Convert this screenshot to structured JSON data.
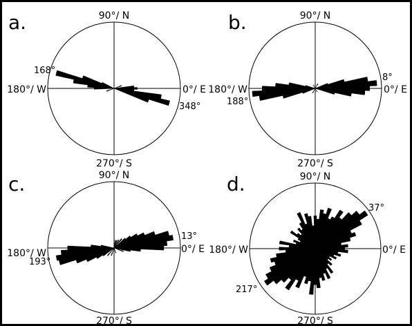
{
  "figure": {
    "frame_color": "#000000",
    "bar_color": "#000000"
  },
  "chart_data": [
    {
      "type": "rose",
      "panel_label": "a.",
      "direction_labels": {
        "north": "90°/ N",
        "west": "180°/ W",
        "east": "0°/ E",
        "south": "270°/ S"
      },
      "peak_labels": [
        "168°",
        "348°"
      ],
      "bin_width_deg": 5,
      "radius_max": 1.0,
      "sectors": [
        {
          "angle": 0,
          "r": 0.35
        },
        {
          "angle": 5,
          "r": 0.3
        },
        {
          "angle": 340,
          "r": 0.55
        },
        {
          "angle": 345,
          "r": 0.86
        },
        {
          "angle": 350,
          "r": 0.72
        },
        {
          "angle": 355,
          "r": 0.3
        },
        {
          "angle": 180,
          "r": 0.3
        },
        {
          "angle": 175,
          "r": 0.4
        },
        {
          "angle": 170,
          "r": 0.62
        },
        {
          "angle": 165,
          "r": 0.9
        },
        {
          "angle": 160,
          "r": 0.5
        },
        {
          "angle": 155,
          "r": 0.2
        },
        {
          "angle": 20,
          "r": 0.12
        },
        {
          "angle": 200,
          "r": 0.12
        }
      ]
    },
    {
      "type": "rose",
      "panel_label": "b.",
      "direction_labels": {
        "north": "90°/ N",
        "west": "180°/ W",
        "east": "0°/ E",
        "south": "270°/ S"
      },
      "peak_labels": [
        "8°",
        "188°"
      ],
      "bin_width_deg": 5,
      "radius_max": 1.0,
      "sectors": [
        {
          "angle": 0,
          "r": 0.82
        },
        {
          "angle": 5,
          "r": 0.93
        },
        {
          "angle": 10,
          "r": 0.8
        },
        {
          "angle": 15,
          "r": 0.45
        },
        {
          "angle": 20,
          "r": 0.2
        },
        {
          "angle": 350,
          "r": 0.55
        },
        {
          "angle": 355,
          "r": 0.75
        },
        {
          "angle": 345,
          "r": 0.3
        },
        {
          "angle": 180,
          "r": 0.8
        },
        {
          "angle": 185,
          "r": 0.95
        },
        {
          "angle": 190,
          "r": 0.85
        },
        {
          "angle": 175,
          "r": 0.6
        },
        {
          "angle": 170,
          "r": 0.4
        },
        {
          "angle": 195,
          "r": 0.5
        },
        {
          "angle": 200,
          "r": 0.2
        },
        {
          "angle": 165,
          "r": 0.15
        },
        {
          "angle": 60,
          "r": 0.08
        },
        {
          "angle": 240,
          "r": 0.08
        },
        {
          "angle": 120,
          "r": 0.06
        },
        {
          "angle": 300,
          "r": 0.06
        }
      ]
    },
    {
      "type": "rose",
      "panel_label": "c.",
      "direction_labels": {
        "north": "90°/ N",
        "west": "180°/ W",
        "east": "0°/ E",
        "south": "270°/ S"
      },
      "peak_labels": [
        "13°",
        "193°"
      ],
      "bin_width_deg": 5,
      "radius_max": 1.0,
      "sectors": [
        {
          "angle": 0,
          "r": 0.75
        },
        {
          "angle": 5,
          "r": 0.8
        },
        {
          "angle": 10,
          "r": 0.9
        },
        {
          "angle": 15,
          "r": 0.85
        },
        {
          "angle": 20,
          "r": 0.65
        },
        {
          "angle": 25,
          "r": 0.5
        },
        {
          "angle": 30,
          "r": 0.4
        },
        {
          "angle": 35,
          "r": 0.3
        },
        {
          "angle": 40,
          "r": 0.22
        },
        {
          "angle": 50,
          "r": 0.18
        },
        {
          "angle": 60,
          "r": 0.14
        },
        {
          "angle": 70,
          "r": 0.12
        },
        {
          "angle": 80,
          "r": 0.12
        },
        {
          "angle": 355,
          "r": 0.4
        },
        {
          "angle": 350,
          "r": 0.25
        },
        {
          "angle": 340,
          "r": 0.15
        },
        {
          "angle": 180,
          "r": 0.7
        },
        {
          "angle": 185,
          "r": 0.8
        },
        {
          "angle": 190,
          "r": 0.88
        },
        {
          "angle": 195,
          "r": 0.85
        },
        {
          "angle": 200,
          "r": 0.6
        },
        {
          "angle": 205,
          "r": 0.45
        },
        {
          "angle": 210,
          "r": 0.3
        },
        {
          "angle": 215,
          "r": 0.2
        },
        {
          "angle": 175,
          "r": 0.35
        },
        {
          "angle": 170,
          "r": 0.2
        },
        {
          "angle": 230,
          "r": 0.15
        },
        {
          "angle": 250,
          "r": 0.12
        },
        {
          "angle": 270,
          "r": 0.08
        },
        {
          "angle": 290,
          "r": 0.08
        }
      ]
    },
    {
      "type": "rose",
      "panel_label": "d.",
      "direction_labels": {
        "north": "90°/ N",
        "west": "180°/ W",
        "east": "0°/ E",
        "south": "270°/ S"
      },
      "peak_labels": [
        "37°",
        "217°"
      ],
      "bin_width_deg": 5,
      "radius_max": 1.0,
      "sectors": [
        {
          "angle": 0,
          "r": 0.45
        },
        {
          "angle": 5,
          "r": 0.5
        },
        {
          "angle": 10,
          "r": 0.4
        },
        {
          "angle": 15,
          "r": 0.55
        },
        {
          "angle": 20,
          "r": 0.65
        },
        {
          "angle": 25,
          "r": 0.6
        },
        {
          "angle": 30,
          "r": 0.8
        },
        {
          "angle": 35,
          "r": 0.95
        },
        {
          "angle": 40,
          "r": 0.85
        },
        {
          "angle": 45,
          "r": 0.75
        },
        {
          "angle": 50,
          "r": 0.6
        },
        {
          "angle": 55,
          "r": 0.7
        },
        {
          "angle": 60,
          "r": 0.55
        },
        {
          "angle": 65,
          "r": 0.5
        },
        {
          "angle": 70,
          "r": 0.65
        },
        {
          "angle": 75,
          "r": 0.55
        },
        {
          "angle": 80,
          "r": 0.6
        },
        {
          "angle": 85,
          "r": 0.45
        },
        {
          "angle": 90,
          "r": 0.5
        },
        {
          "angle": 95,
          "r": 0.35
        },
        {
          "angle": 100,
          "r": 0.5
        },
        {
          "angle": 105,
          "r": 0.55
        },
        {
          "angle": 110,
          "r": 0.4
        },
        {
          "angle": 115,
          "r": 0.6
        },
        {
          "angle": 120,
          "r": 0.45
        },
        {
          "angle": 125,
          "r": 0.35
        },
        {
          "angle": 130,
          "r": 0.4
        },
        {
          "angle": 135,
          "r": 0.3
        },
        {
          "angle": 140,
          "r": 0.35
        },
        {
          "angle": 145,
          "r": 0.45
        },
        {
          "angle": 150,
          "r": 0.3
        },
        {
          "angle": 155,
          "r": 0.25
        },
        {
          "angle": 160,
          "r": 0.35
        },
        {
          "angle": 165,
          "r": 0.3
        },
        {
          "angle": 170,
          "r": 0.55
        },
        {
          "angle": 175,
          "r": 0.4
        },
        {
          "angle": 180,
          "r": 0.55
        },
        {
          "angle": 185,
          "r": 0.45
        },
        {
          "angle": 190,
          "r": 0.6
        },
        {
          "angle": 195,
          "r": 0.7
        },
        {
          "angle": 200,
          "r": 0.65
        },
        {
          "angle": 205,
          "r": 0.75
        },
        {
          "angle": 210,
          "r": 0.85
        },
        {
          "angle": 215,
          "r": 0.92
        },
        {
          "angle": 220,
          "r": 0.8
        },
        {
          "angle": 225,
          "r": 0.7
        },
        {
          "angle": 230,
          "r": 0.6
        },
        {
          "angle": 235,
          "r": 0.75
        },
        {
          "angle": 240,
          "r": 0.55
        },
        {
          "angle": 245,
          "r": 0.65
        },
        {
          "angle": 250,
          "r": 0.45
        },
        {
          "angle": 255,
          "r": 0.55
        },
        {
          "angle": 260,
          "r": 0.5
        },
        {
          "angle": 265,
          "r": 0.7
        },
        {
          "angle": 270,
          "r": 0.55
        },
        {
          "angle": 275,
          "r": 0.6
        },
        {
          "angle": 280,
          "r": 0.45
        },
        {
          "angle": 285,
          "r": 0.5
        },
        {
          "angle": 290,
          "r": 0.4
        },
        {
          "angle": 295,
          "r": 0.5
        },
        {
          "angle": 300,
          "r": 0.35
        },
        {
          "angle": 305,
          "r": 0.45
        },
        {
          "angle": 310,
          "r": 0.3
        },
        {
          "angle": 315,
          "r": 0.35
        },
        {
          "angle": 320,
          "r": 0.25
        },
        {
          "angle": 325,
          "r": 0.3
        },
        {
          "angle": 330,
          "r": 0.25
        },
        {
          "angle": 335,
          "r": 0.35
        },
        {
          "angle": 340,
          "r": 0.3
        },
        {
          "angle": 345,
          "r": 0.4
        },
        {
          "angle": 350,
          "r": 0.35
        },
        {
          "angle": 355,
          "r": 0.5
        }
      ]
    }
  ]
}
